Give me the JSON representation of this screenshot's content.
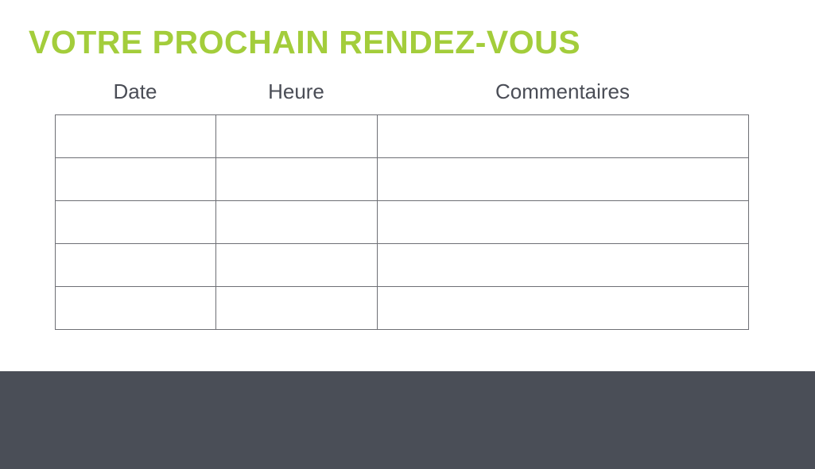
{
  "title": "VOTRE PROCHAIN RENDEZ-VOUS",
  "columns": [
    "Date",
    "Heure",
    "Commentaires"
  ],
  "rows": [
    [
      "",
      "",
      ""
    ],
    [
      "",
      "",
      ""
    ],
    [
      "",
      "",
      ""
    ],
    [
      "",
      "",
      ""
    ],
    [
      "",
      "",
      ""
    ]
  ],
  "colors": {
    "accent": "#a3cd3b",
    "footer": "#4a4e57",
    "text": "#4a4d56"
  }
}
